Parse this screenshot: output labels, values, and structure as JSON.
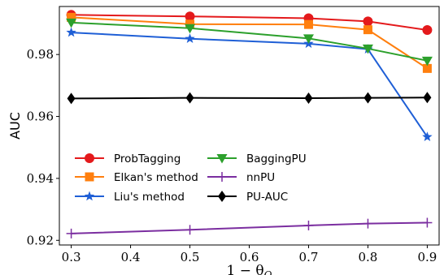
{
  "chart_data": {
    "type": "line",
    "xlabel": "1 − θ",
    "xlabel_sub": "O",
    "ylabel": "AUC",
    "x": [
      0.3,
      0.5,
      0.7,
      0.8,
      0.9
    ],
    "xlim": [
      0.28,
      0.92
    ],
    "ylim": [
      0.9185,
      0.9955
    ],
    "xticks": [
      "0.3",
      "0.4",
      "0.5",
      "0.6",
      "0.7",
      "0.8",
      "0.9"
    ],
    "yticks": [
      "0.92",
      "0.94",
      "0.96",
      "0.98"
    ],
    "grid": false,
    "legend_position": "bottom-left",
    "series": [
      {
        "name": "ProbTagging",
        "color": "#e41a1c",
        "marker": "circle",
        "values": [
          0.9928,
          0.9923,
          0.9917,
          0.9907,
          0.9879
        ]
      },
      {
        "name": "Elkan's method",
        "color": "#ff7f0e",
        "marker": "square",
        "values": [
          0.992,
          0.9898,
          0.9897,
          0.988,
          0.9755
        ]
      },
      {
        "name": "Liu's method",
        "color": "#1f5fd6",
        "marker": "star",
        "values": [
          0.9871,
          0.9851,
          0.9835,
          0.9817,
          0.9534
        ]
      },
      {
        "name": "BaggingPU",
        "color": "#2ca02c",
        "marker": "triangle-down",
        "values": [
          0.9903,
          0.9885,
          0.9852,
          0.9819,
          0.978
        ]
      },
      {
        "name": "nnPU",
        "color": "#7b2ea0",
        "marker": "plus",
        "values": [
          0.9222,
          0.9234,
          0.9248,
          0.9254,
          0.9257
        ]
      },
      {
        "name": "PU-AUC",
        "color": "#000000",
        "marker": "diamond",
        "values": [
          0.9658,
          0.966,
          0.9659,
          0.966,
          0.9661
        ]
      }
    ]
  }
}
